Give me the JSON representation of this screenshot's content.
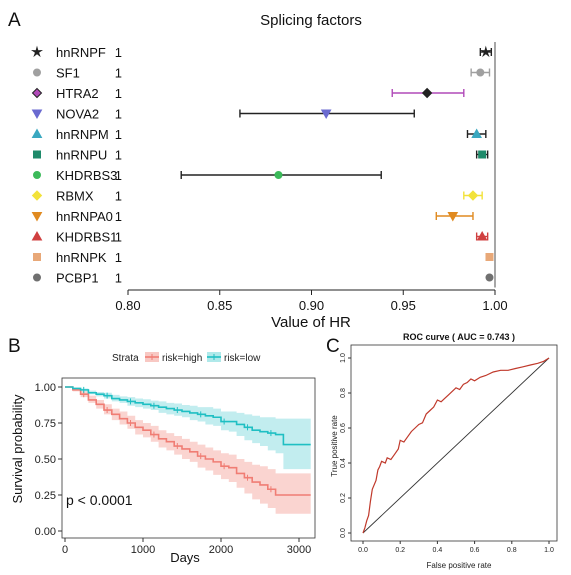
{
  "figure": {
    "panels": [
      "A",
      "B",
      "C"
    ]
  },
  "chart_data": [
    {
      "type": "forest",
      "title": "Splicing factors",
      "xlabel": "Value of HR",
      "xlim": [
        0.8,
        1.0
      ],
      "xticks": [
        "0.80",
        "0.85",
        "0.90",
        "0.95",
        "1.00"
      ],
      "reference_line": 1.0,
      "rows": [
        {
          "label": "hnRNPF",
          "group": "1",
          "symbol": "star",
          "color": "#222222",
          "hr": 0.995,
          "lo": 0.992,
          "hi": 0.998
        },
        {
          "label": "SF1",
          "group": "1",
          "symbol": "circle",
          "color": "#a0a0a0",
          "hr": 0.992,
          "lo": 0.987,
          "hi": 0.997
        },
        {
          "label": "HTRA2",
          "group": "1",
          "symbol": "diamond",
          "color": "#b04ab8",
          "marker_color": "#222222",
          "hr": 0.963,
          "lo": 0.944,
          "hi": 0.983
        },
        {
          "label": "NOVA2",
          "group": "1",
          "symbol": "triangle-down",
          "color": "#222222",
          "marker_color": "#6a6ad0",
          "hr": 0.908,
          "lo": 0.861,
          "hi": 0.956
        },
        {
          "label": "hnRNPM",
          "group": "1",
          "symbol": "triangle",
          "color": "#222222",
          "marker_color": "#3aa8c0",
          "hr": 0.99,
          "lo": 0.985,
          "hi": 0.995
        },
        {
          "label": "hnRNPU",
          "group": "1",
          "symbol": "square",
          "color": "#222222",
          "marker_color": "#1e8a6a",
          "hr": 0.993,
          "lo": 0.99,
          "hi": 0.996
        },
        {
          "label": "KHDRBS3",
          "group": "1",
          "symbol": "circle",
          "color": "#222222",
          "marker_color": "#3cba5a",
          "hr": 0.882,
          "lo": 0.829,
          "hi": 0.938
        },
        {
          "label": "RBMX",
          "group": "1",
          "symbol": "diamond",
          "color": "#f2e23a",
          "hr": 0.988,
          "lo": 0.983,
          "hi": 0.993
        },
        {
          "label": "hnRNPA0",
          "group": "1",
          "symbol": "triangle-down",
          "color": "#e08a20",
          "hr": 0.977,
          "lo": 0.968,
          "hi": 0.988
        },
        {
          "label": "KHDRBS1",
          "group": "1",
          "symbol": "triangle",
          "color": "#d04040",
          "hr": 0.993,
          "lo": 0.99,
          "hi": 0.996
        },
        {
          "label": "hnRNPK",
          "group": "1",
          "symbol": "square",
          "color": "#e8a878",
          "hr": 0.997,
          "lo": 0.997,
          "hi": 0.997
        },
        {
          "label": "PCBP1",
          "group": "1",
          "symbol": "circle",
          "color": "#707070",
          "hr": 0.997,
          "lo": 0.997,
          "hi": 0.997
        }
      ]
    },
    {
      "type": "line",
      "subtype": "kaplan-meier",
      "legend_title": "Strata",
      "legend_placement": "top",
      "xlabel": "Days",
      "ylabel": "Survival probability",
      "xlim": [
        0,
        3150
      ],
      "ylim": [
        0,
        1.0
      ],
      "xticks": [
        "0",
        "1000",
        "2000",
        "3000"
      ],
      "yticks": [
        "0.00",
        "0.25",
        "0.50",
        "0.75",
        "1.00"
      ],
      "annotation": "p < 0.0001",
      "series": [
        {
          "name": "risk=high",
          "color": "#f07d74",
          "band_color": "#f5b0aa",
          "x": [
            0,
            100,
            200,
            300,
            400,
            500,
            600,
            700,
            800,
            900,
            1000,
            1100,
            1200,
            1300,
            1400,
            1500,
            1600,
            1700,
            1800,
            1900,
            2000,
            2100,
            2200,
            2300,
            2400,
            2500,
            2600,
            2700,
            2800,
            3150
          ],
          "y": [
            1.0,
            0.98,
            0.95,
            0.91,
            0.88,
            0.84,
            0.81,
            0.78,
            0.75,
            0.72,
            0.7,
            0.67,
            0.64,
            0.62,
            0.59,
            0.57,
            0.55,
            0.52,
            0.5,
            0.48,
            0.45,
            0.44,
            0.4,
            0.37,
            0.34,
            0.32,
            0.29,
            0.25,
            0.25,
            0.25
          ],
          "lower": [
            1.0,
            0.97,
            0.93,
            0.89,
            0.85,
            0.81,
            0.77,
            0.74,
            0.71,
            0.67,
            0.65,
            0.62,
            0.58,
            0.56,
            0.53,
            0.5,
            0.48,
            0.44,
            0.42,
            0.39,
            0.36,
            0.34,
            0.3,
            0.26,
            0.22,
            0.19,
            0.16,
            0.12,
            0.12,
            0.12
          ],
          "upper": [
            1.0,
            0.99,
            0.97,
            0.94,
            0.91,
            0.88,
            0.85,
            0.83,
            0.8,
            0.77,
            0.75,
            0.73,
            0.7,
            0.68,
            0.66,
            0.64,
            0.62,
            0.6,
            0.58,
            0.56,
            0.54,
            0.53,
            0.5,
            0.48,
            0.46,
            0.45,
            0.43,
            0.4,
            0.4,
            0.4
          ]
        },
        {
          "name": "risk=low",
          "color": "#1fbfc3",
          "band_color": "#8fdfe1",
          "x": [
            0,
            100,
            200,
            300,
            400,
            500,
            600,
            700,
            800,
            900,
            1000,
            1100,
            1200,
            1300,
            1400,
            1500,
            1600,
            1700,
            1800,
            1900,
            2000,
            2100,
            2200,
            2300,
            2400,
            2500,
            2600,
            2700,
            2800,
            3150
          ],
          "y": [
            1.0,
            0.99,
            0.98,
            0.96,
            0.95,
            0.94,
            0.92,
            0.91,
            0.9,
            0.89,
            0.88,
            0.87,
            0.86,
            0.85,
            0.84,
            0.83,
            0.82,
            0.81,
            0.8,
            0.79,
            0.76,
            0.76,
            0.74,
            0.72,
            0.7,
            0.69,
            0.68,
            0.67,
            0.6,
            0.6
          ],
          "lower": [
            1.0,
            0.985,
            0.97,
            0.95,
            0.935,
            0.92,
            0.9,
            0.89,
            0.87,
            0.86,
            0.85,
            0.84,
            0.82,
            0.81,
            0.8,
            0.79,
            0.77,
            0.76,
            0.74,
            0.73,
            0.7,
            0.69,
            0.66,
            0.63,
            0.61,
            0.59,
            0.56,
            0.54,
            0.43,
            0.43
          ],
          "upper": [
            1.0,
            0.995,
            0.99,
            0.975,
            0.965,
            0.96,
            0.945,
            0.935,
            0.93,
            0.92,
            0.915,
            0.905,
            0.9,
            0.89,
            0.885,
            0.875,
            0.87,
            0.86,
            0.86,
            0.85,
            0.83,
            0.83,
            0.82,
            0.81,
            0.8,
            0.79,
            0.79,
            0.78,
            0.78,
            0.78
          ]
        }
      ]
    },
    {
      "type": "line",
      "subtype": "roc",
      "title": "ROC curve ( AUC =  0.743 )",
      "xlabel": "False positive rate",
      "ylabel": "True positive rate",
      "xlim": [
        0,
        1
      ],
      "ylim": [
        0,
        1
      ],
      "xticks": [
        "0.0",
        "0.2",
        "0.4",
        "0.6",
        "0.8",
        "1.0"
      ],
      "yticks": [
        "0.0",
        "0.2",
        "0.4",
        "0.6",
        "0.8",
        "1.0"
      ],
      "series": [
        {
          "color": "#c0392b",
          "x": [
            0.0,
            0.01,
            0.02,
            0.03,
            0.04,
            0.05,
            0.07,
            0.08,
            0.09,
            0.1,
            0.12,
            0.13,
            0.15,
            0.17,
            0.19,
            0.2,
            0.22,
            0.24,
            0.26,
            0.28,
            0.3,
            0.32,
            0.34,
            0.36,
            0.38,
            0.4,
            0.42,
            0.44,
            0.46,
            0.48,
            0.5,
            0.52,
            0.54,
            0.56,
            0.58,
            0.6,
            0.63,
            0.66,
            0.7,
            0.74,
            0.78,
            0.82,
            0.86,
            0.9,
            0.94,
            0.97,
            1.0
          ],
          "y": [
            0.0,
            0.03,
            0.07,
            0.1,
            0.18,
            0.25,
            0.3,
            0.36,
            0.38,
            0.41,
            0.4,
            0.43,
            0.42,
            0.45,
            0.48,
            0.53,
            0.52,
            0.55,
            0.58,
            0.6,
            0.62,
            0.63,
            0.68,
            0.7,
            0.72,
            0.76,
            0.75,
            0.77,
            0.79,
            0.81,
            0.83,
            0.82,
            0.85,
            0.86,
            0.88,
            0.87,
            0.89,
            0.9,
            0.92,
            0.93,
            0.93,
            0.94,
            0.95,
            0.96,
            0.97,
            0.98,
            1.0
          ]
        }
      ]
    }
  ]
}
